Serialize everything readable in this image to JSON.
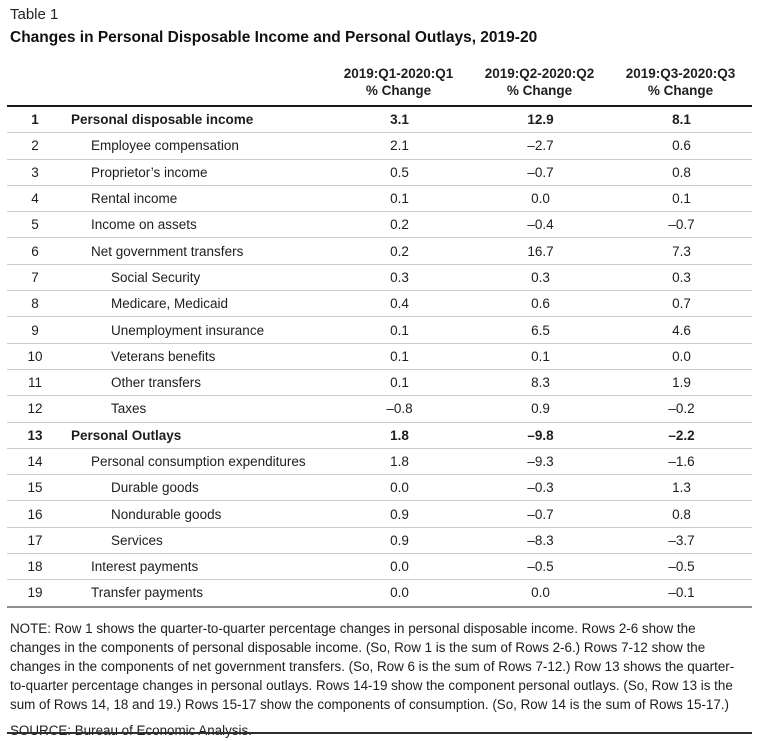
{
  "table_label": "Table 1",
  "title": "Changes in Personal Disposable Income and Personal Outlays, 2019-20",
  "columns": [
    {
      "period": "2019:Q1-2020:Q1",
      "unit": "% Change"
    },
    {
      "period": "2019:Q2-2020:Q2",
      "unit": "% Change"
    },
    {
      "period": "2019:Q3-2020:Q3",
      "unit": "% Change"
    }
  ],
  "rows": [
    {
      "num": "1",
      "label": "Personal disposable income",
      "indent": 0,
      "bold": true,
      "values": [
        "3.1",
        "12.9",
        "8.1"
      ]
    },
    {
      "num": "2",
      "label": "Employee compensation",
      "indent": 1,
      "bold": false,
      "values": [
        "2.1",
        "–2.7",
        "0.6"
      ]
    },
    {
      "num": "3",
      "label": "Proprietor’s income",
      "indent": 1,
      "bold": false,
      "values": [
        "0.5",
        "–0.7",
        "0.8"
      ]
    },
    {
      "num": "4",
      "label": "Rental income",
      "indent": 1,
      "bold": false,
      "values": [
        "0.1",
        "0.0",
        "0.1"
      ]
    },
    {
      "num": "5",
      "label": "Income on assets",
      "indent": 1,
      "bold": false,
      "values": [
        "0.2",
        "–0.4",
        "–0.7"
      ]
    },
    {
      "num": "6",
      "label": "Net government transfers",
      "indent": 1,
      "bold": false,
      "values": [
        "0.2",
        "16.7",
        "7.3"
      ]
    },
    {
      "num": "7",
      "label": "Social Security",
      "indent": 2,
      "bold": false,
      "values": [
        "0.3",
        "0.3",
        "0.3"
      ]
    },
    {
      "num": "8",
      "label": "Medicare, Medicaid",
      "indent": 2,
      "bold": false,
      "values": [
        "0.4",
        "0.6",
        "0.7"
      ]
    },
    {
      "num": "9",
      "label": "Unemployment insurance",
      "indent": 2,
      "bold": false,
      "values": [
        "0.1",
        "6.5",
        "4.6"
      ]
    },
    {
      "num": "10",
      "label": "Veterans benefits",
      "indent": 2,
      "bold": false,
      "values": [
        "0.1",
        "0.1",
        "0.0"
      ]
    },
    {
      "num": "11",
      "label": "Other transfers",
      "indent": 2,
      "bold": false,
      "values": [
        "0.1",
        "8.3",
        "1.9"
      ]
    },
    {
      "num": "12",
      "label": "Taxes",
      "indent": 2,
      "bold": false,
      "values": [
        "–0.8",
        "0.9",
        "–0.2"
      ]
    },
    {
      "num": "13",
      "label": "Personal Outlays",
      "indent": 0,
      "bold": true,
      "values": [
        "1.8",
        "–9.8",
        "–2.2"
      ]
    },
    {
      "num": "14",
      "label": "Personal consumption expenditures",
      "indent": 1,
      "bold": false,
      "values": [
        "1.8",
        "–9.3",
        "–1.6"
      ]
    },
    {
      "num": "15",
      "label": "Durable goods",
      "indent": 2,
      "bold": false,
      "values": [
        "0.0",
        "–0.3",
        "1.3"
      ]
    },
    {
      "num": "16",
      "label": "Nondurable goods",
      "indent": 2,
      "bold": false,
      "values": [
        "0.9",
        "–0.7",
        "0.8"
      ]
    },
    {
      "num": "17",
      "label": "Services",
      "indent": 2,
      "bold": false,
      "values": [
        "0.9",
        "–8.3",
        "–3.7"
      ]
    },
    {
      "num": "18",
      "label": "Interest payments",
      "indent": 1,
      "bold": false,
      "values": [
        "0.0",
        "–0.5",
        "–0.5"
      ]
    },
    {
      "num": "19",
      "label": "Transfer payments",
      "indent": 1,
      "bold": false,
      "values": [
        "0.0",
        "0.0",
        "–0.1"
      ]
    }
  ],
  "note": "NOTE: Row 1 shows the quarter-to-quarter percentage changes in personal disposable income. Rows 2-6 show the changes in the components of personal disposable income. (So, Row 1 is the sum of Rows 2-6.) Rows 7-12 show the changes in the components of net government transfers. (So, Row 6 is the sum of Rows 7-12.) Row 13 shows the quarter-to-quarter percentage changes in personal outlays. Rows 14-19 show the component personal outlays. (So, Row 13 is the sum of Rows 14, 18 and 19.) Rows 15-17 show the components of consumption. (So, Row 14 is the sum of Rows 15-17.)",
  "source": "SOURCE: Bureau of Economic Analysis."
}
